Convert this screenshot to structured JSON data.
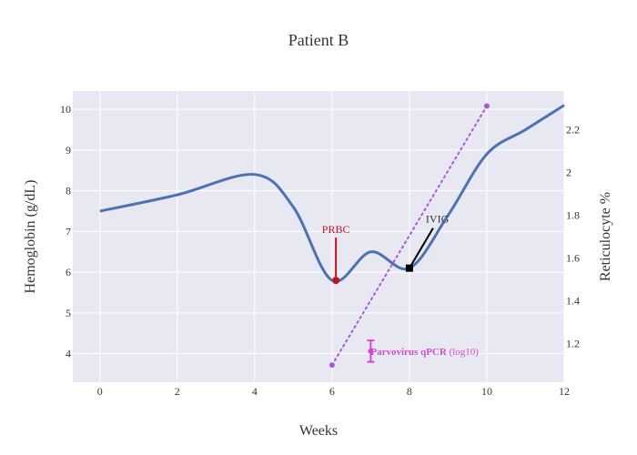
{
  "chart_data": {
    "type": "line",
    "title": "Patient B",
    "xlabel": "Weeks",
    "ylabel_left": "Hemoglobin (g/dL)",
    "ylabel_right": "Reticulocyte %",
    "xlim": [
      -0.7,
      12
    ],
    "ylim_left": [
      3.3,
      10.45
    ],
    "ylim_right": [
      1.02,
      2.38
    ],
    "x_ticks": [
      0,
      2,
      4,
      6,
      8,
      10,
      12
    ],
    "y_ticks_left": [
      4,
      5,
      6,
      7,
      8,
      9,
      10
    ],
    "y_ticks_right": [
      1.2,
      1.4,
      1.6,
      1.8,
      2,
      2.2
    ],
    "grid": true,
    "colors": {
      "hemoglobin": "#4c72b0",
      "reticulocyte": "#a55bd6",
      "prbc": "#c0141e",
      "ivig": "#000000",
      "parvovirus": "#d04ad0",
      "plot_bg": "#e8e8f2"
    },
    "series": [
      {
        "axis": "left",
        "style": "solid-smooth",
        "x": [
          0,
          2,
          4,
          5,
          6,
          7,
          8,
          9,
          10,
          11,
          12
        ],
        "values": [
          7.5,
          7.9,
          8.4,
          7.6,
          5.8,
          6.5,
          6.1,
          7.4,
          8.9,
          9.5,
          10.1
        ]
      },
      {
        "axis": "right",
        "style": "dotted",
        "x": [
          6,
          10
        ],
        "values": [
          1.1,
          2.31
        ]
      }
    ],
    "annotations": [
      {
        "text": "PRBC",
        "x": 6.1,
        "y": 5.8,
        "axis": "left",
        "marker": "circle"
      },
      {
        "text": "IVIG",
        "x": 8.0,
        "y": 6.1,
        "axis": "left",
        "marker": "square"
      }
    ],
    "parvovirus": {
      "label_bold": "Parvovirus qPCR",
      "label_suffix": " (log10)",
      "x": 7,
      "y": 1.165,
      "err_low": 1.115,
      "err_high": 1.215,
      "axis": "right"
    }
  }
}
